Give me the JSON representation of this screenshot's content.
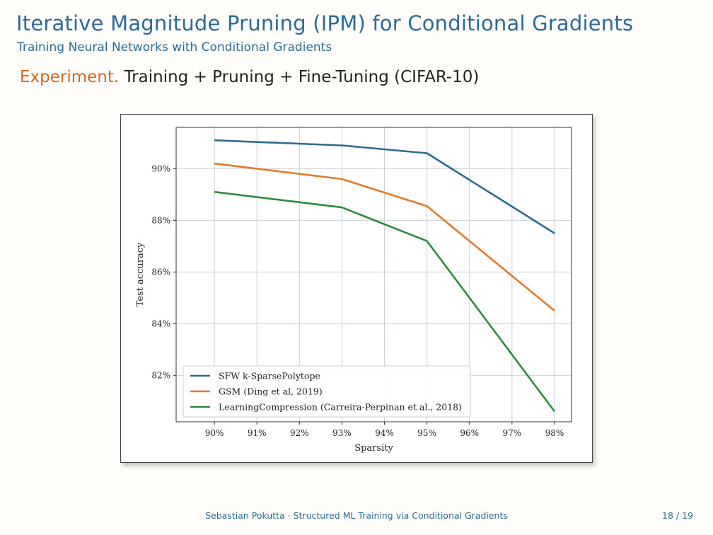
{
  "slide": {
    "title": "Iterative Magnitude Pruning (IPM) for Conditional Gradients",
    "subtitle": "Training Neural Networks with Conditional Gradients",
    "heading_keyword": "Experiment.",
    "heading_text": " Training + Pruning + Fine-Tuning (CIFAR-10)",
    "footer": "Sebastian Pokutta · Structured ML Training via Conditional Gradients",
    "page": "18 / 19"
  },
  "chart_data": {
    "type": "line",
    "xlabel": "Sparsity",
    "ylabel": "Test accuracy",
    "categories": [
      "90%",
      "91%",
      "92%",
      "93%",
      "94%",
      "95%",
      "96%",
      "97%",
      "98%"
    ],
    "x": [
      90,
      91,
      92,
      93,
      94,
      95,
      96,
      97,
      98
    ],
    "xlim": [
      89.1,
      98.4
    ],
    "ylim": [
      80.2,
      91.6
    ],
    "yticks": [
      82,
      84,
      86,
      88,
      90
    ],
    "ytick_labels": [
      "82%",
      "84%",
      "86%",
      "88%",
      "90%"
    ],
    "grid": true,
    "legend_position": "lower-left",
    "series": [
      {
        "name": "SFW k-SparsePolytope",
        "color": "#2f6b8e",
        "x": [
          90,
          93,
          95,
          98
        ],
        "values": [
          91.1,
          90.9,
          90.6,
          87.5
        ]
      },
      {
        "name": "GSM (Ding et al, 2019)",
        "color": "#e07b28",
        "x": [
          90,
          93,
          95,
          98
        ],
        "values": [
          90.2,
          89.6,
          88.55,
          84.5
        ]
      },
      {
        "name": "LearningCompression (Carreira-Perpinan et al., 2018)",
        "color": "#2e8b3e",
        "x": [
          90,
          93,
          95,
          98
        ],
        "values": [
          89.1,
          88.5,
          87.2,
          80.6
        ]
      }
    ]
  }
}
